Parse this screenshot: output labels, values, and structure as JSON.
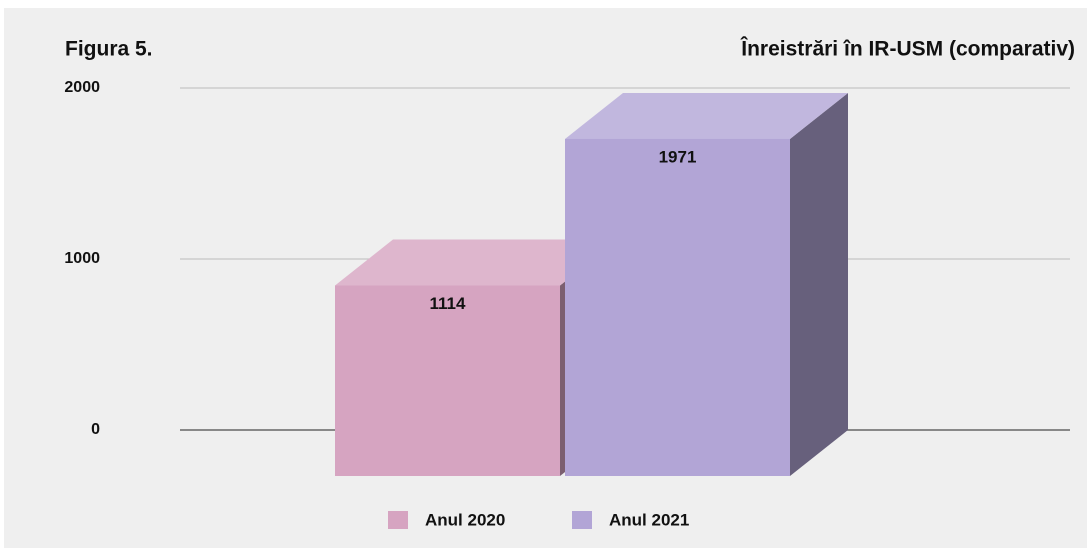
{
  "chart_data": {
    "type": "bar3d",
    "figure_label": "Figura 5.",
    "title": "Înreistrări în IR-USM (comparativ)",
    "categories": [
      null
    ],
    "series": [
      {
        "name": "Anul 2020",
        "color": "#d6a4c1",
        "values": [
          1114
        ]
      },
      {
        "name": "Anul 2021",
        "color": "#b2a5d6",
        "values": [
          1971
        ]
      }
    ],
    "ylim": [
      0,
      2000
    ],
    "yticks": [
      0,
      1000,
      2000
    ],
    "grid": true,
    "legend": "bottom"
  }
}
